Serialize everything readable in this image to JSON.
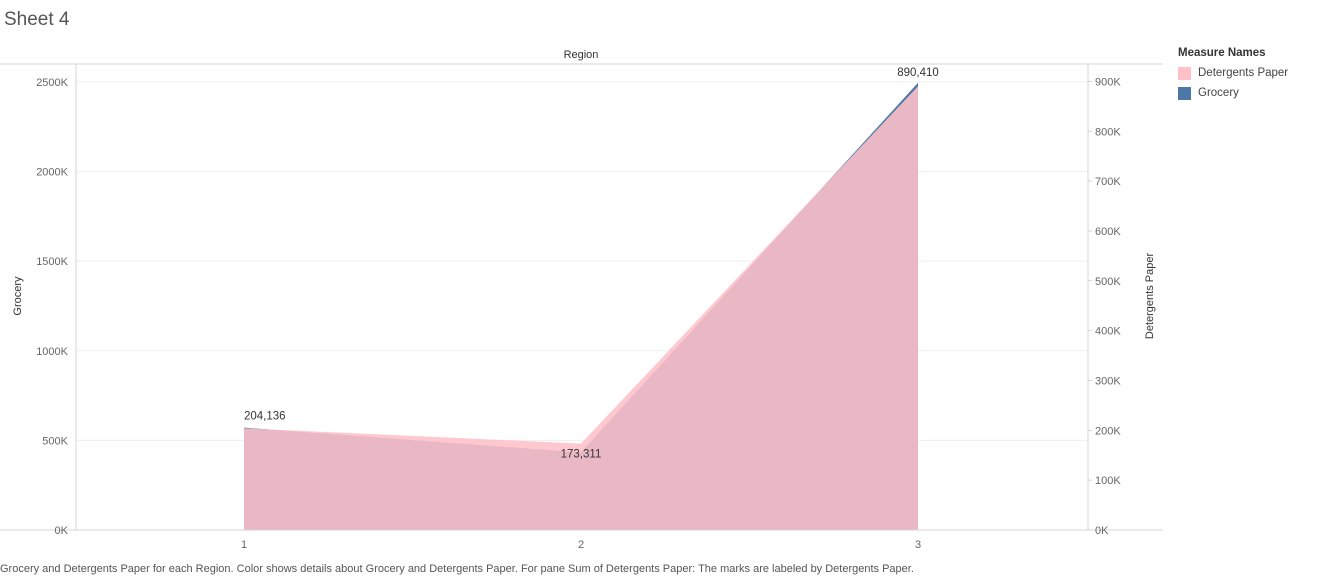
{
  "sheet_title": "Sheet 4",
  "caption": "Grocery and Detergents Paper for each Region.  Color shows details about Grocery and Detergents Paper.  For pane Sum of Detergents Paper:  The marks are labeled by Detergents Paper.",
  "legend": {
    "title": "Measure Names",
    "items": [
      {
        "label": "Detergents Paper",
        "color": "#ffc0c8"
      },
      {
        "label": "Grocery",
        "color": "#4e79a7"
      }
    ]
  },
  "chart_data": {
    "type": "area",
    "title": "Region",
    "categories": [
      "1",
      "2",
      "3"
    ],
    "xlabel": "Region",
    "series": [
      {
        "name": "Grocery",
        "axis": "left",
        "values": [
          570997,
          433274,
          2495251
        ],
        "color": "#4e79a7"
      },
      {
        "name": "Detergents Paper",
        "axis": "right",
        "values": [
          204136,
          173311,
          890410
        ],
        "color": "#ffc0c8",
        "data_labels": [
          "204,136",
          "173,311",
          "890,410"
        ]
      }
    ],
    "y_left": {
      "label": "Grocery",
      "range": [
        0,
        2600000
      ],
      "ticks": [
        0,
        500000,
        1000000,
        1500000,
        2000000,
        2500000
      ],
      "tick_labels": [
        "0K",
        "500K",
        "1000K",
        "1500K",
        "2000K",
        "2500K"
      ]
    },
    "y_right": {
      "label": "Detergents Paper",
      "range": [
        0,
        935000
      ],
      "ticks": [
        0,
        100000,
        200000,
        300000,
        400000,
        500000,
        600000,
        700000,
        800000,
        900000
      ],
      "tick_labels": [
        "0K",
        "100K",
        "200K",
        "300K",
        "400K",
        "500K",
        "600K",
        "700K",
        "800K",
        "900K"
      ]
    },
    "grid": true
  }
}
